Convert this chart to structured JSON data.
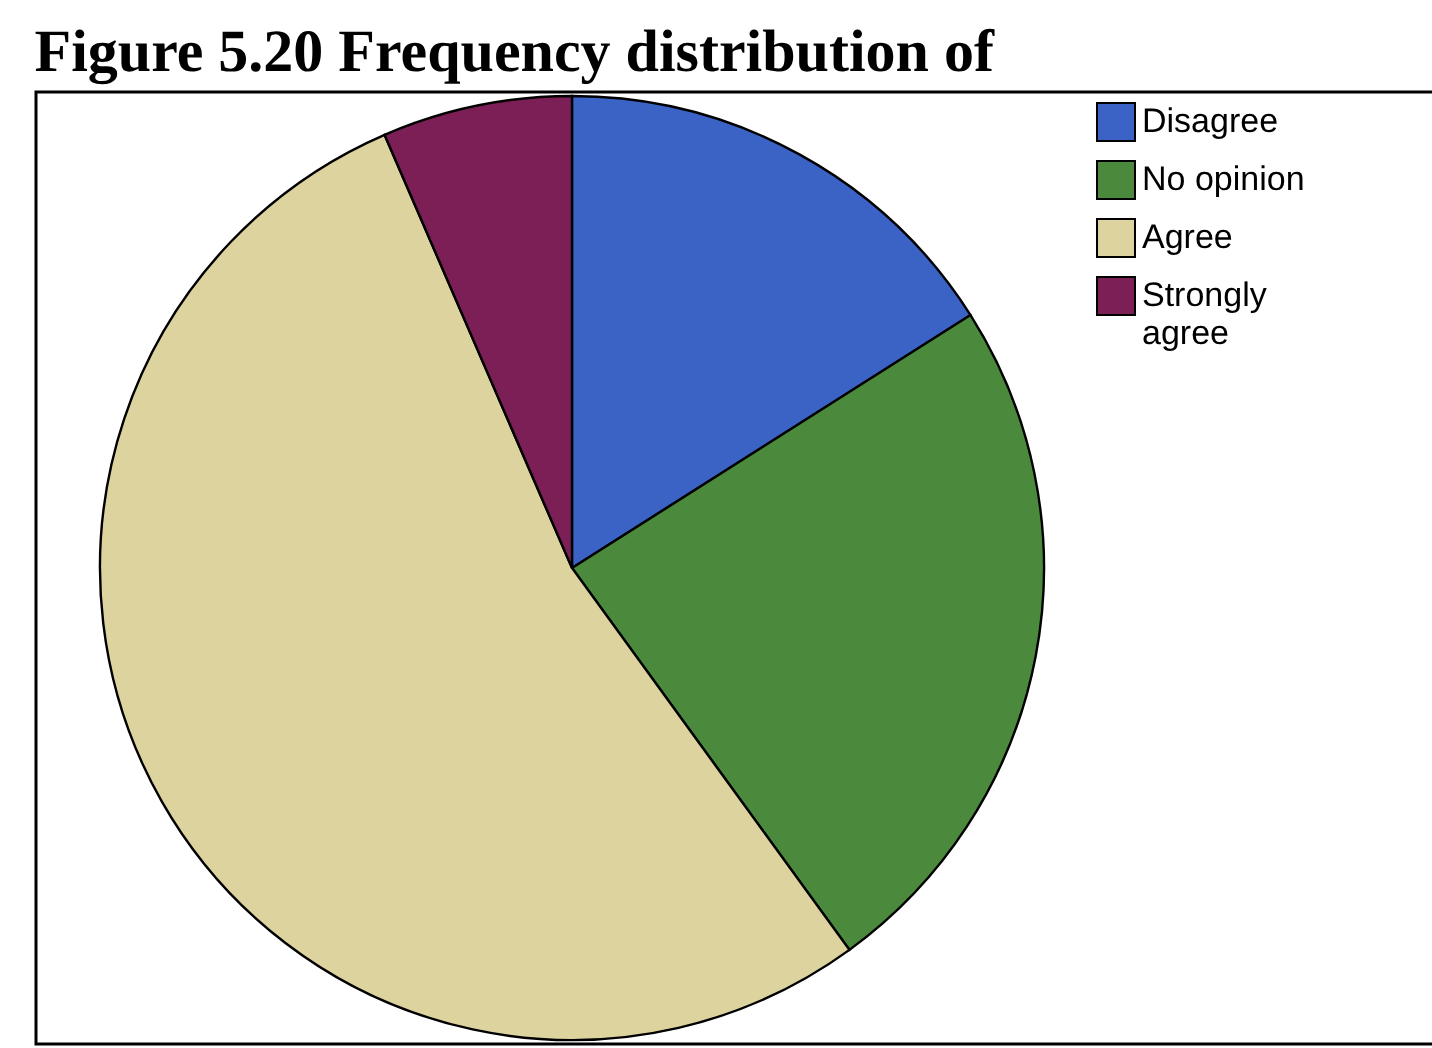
{
  "chart_data": {
    "type": "pie",
    "title": "Figure 5.20 Frequency distribution of",
    "categories": [
      "Disagree",
      "No opinion",
      "Agree",
      "Strongly agree"
    ],
    "values": [
      16,
      24,
      53.5,
      6.5
    ],
    "colors": [
      "#3b63c6",
      "#4b8a3d",
      "#ddd39e",
      "#7b1f56"
    ],
    "legend": "top right"
  }
}
